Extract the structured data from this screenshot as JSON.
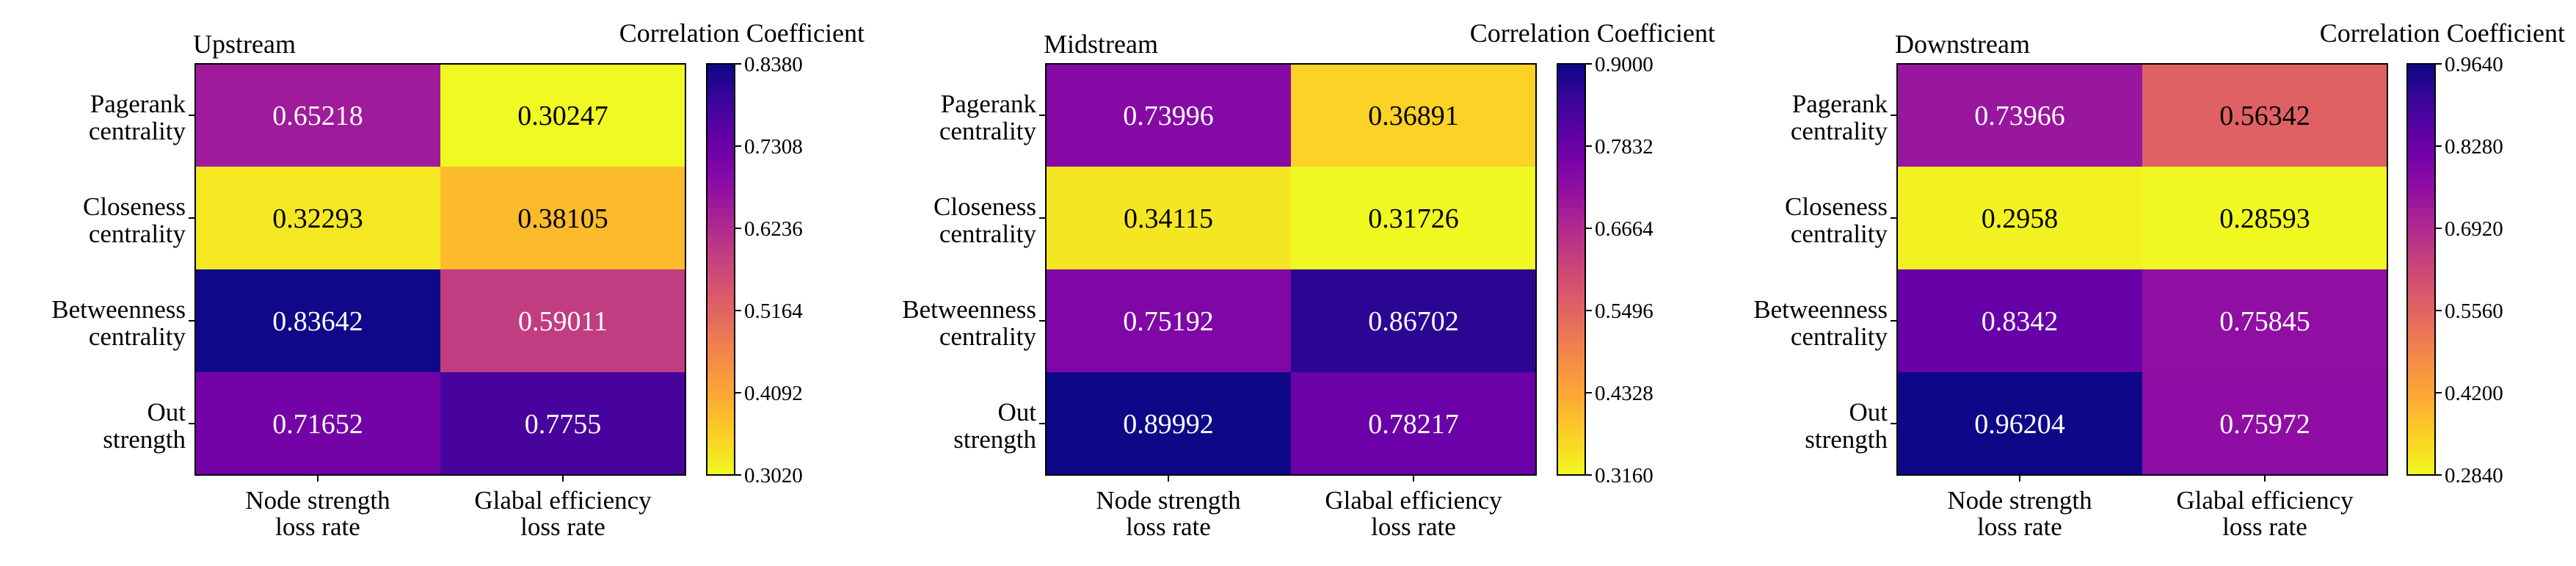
{
  "chart_data": [
    {
      "type": "heatmap",
      "title": "Upstream",
      "colorbar_label": "Correlation Coefficient",
      "row_labels": [
        [
          "Pagerank",
          "centrality"
        ],
        [
          "Closeness",
          "centrality"
        ],
        [
          "Betweenness",
          "centrality"
        ],
        [
          "Out",
          "strength"
        ]
      ],
      "col_labels": [
        [
          "Node strength",
          "loss rate"
        ],
        [
          "Glabal efficiency",
          "loss rate"
        ]
      ],
      "values": [
        [
          0.65218,
          0.30247
        ],
        [
          0.32293,
          0.38105
        ],
        [
          0.83642,
          0.59011
        ],
        [
          0.71652,
          0.7755
        ]
      ],
      "value_labels": [
        [
          "0.65218",
          "0.30247"
        ],
        [
          "0.32293",
          "0.38105"
        ],
        [
          "0.83642",
          "0.59011"
        ],
        [
          "0.71652",
          "0.7755"
        ]
      ],
      "vmin": 0.302,
      "vmax": 0.838,
      "colorbar_ticks": [
        "0.8380",
        "0.7308",
        "0.6236",
        "0.5164",
        "0.4092",
        "0.3020"
      ],
      "colorbar_tick_values": [
        0.838,
        0.7308,
        0.6236,
        0.5164,
        0.4092,
        0.302
      ]
    },
    {
      "type": "heatmap",
      "title": "Midstream",
      "colorbar_label": "Correlation Coefficient",
      "row_labels": [
        [
          "Pagerank",
          "centrality"
        ],
        [
          "Closeness",
          "centrality"
        ],
        [
          "Betweenness",
          "centrality"
        ],
        [
          "Out",
          "strength"
        ]
      ],
      "col_labels": [
        [
          "Node strength",
          "loss rate"
        ],
        [
          "Glabal efficiency",
          "loss rate"
        ]
      ],
      "values": [
        [
          0.73996,
          0.36891
        ],
        [
          0.34115,
          0.31726
        ],
        [
          0.75192,
          0.86702
        ],
        [
          0.89992,
          0.78217
        ]
      ],
      "value_labels": [
        [
          "0.73996",
          "0.36891"
        ],
        [
          "0.34115",
          "0.31726"
        ],
        [
          "0.75192",
          "0.86702"
        ],
        [
          "0.89992",
          "0.78217"
        ]
      ],
      "vmin": 0.316,
      "vmax": 0.9,
      "colorbar_ticks": [
        "0.9000",
        "0.7832",
        "0.6664",
        "0.5496",
        "0.4328",
        "0.3160"
      ],
      "colorbar_tick_values": [
        0.9,
        0.7832,
        0.6664,
        0.5496,
        0.4328,
        0.316
      ]
    },
    {
      "type": "heatmap",
      "title": "Downstream",
      "colorbar_label": "Correlation Coefficient",
      "row_labels": [
        [
          "Pagerank",
          "centrality"
        ],
        [
          "Closeness",
          "centrality"
        ],
        [
          "Betweenness",
          "centrality"
        ],
        [
          "Out",
          "strength"
        ]
      ],
      "col_labels": [
        [
          "Node strength",
          "loss rate"
        ],
        [
          "Glabal efficiency",
          "loss rate"
        ]
      ],
      "values": [
        [
          0.73966,
          0.56342
        ],
        [
          0.2958,
          0.28593
        ],
        [
          0.8342,
          0.75845
        ],
        [
          0.96204,
          0.75972
        ]
      ],
      "value_labels": [
        [
          "0.73966",
          "0.56342"
        ],
        [
          "0.2958",
          "0.28593"
        ],
        [
          "0.8342",
          "0.75845"
        ],
        [
          "0.96204",
          "0.75972"
        ]
      ],
      "vmin": 0.284,
      "vmax": 0.964,
      "colorbar_ticks": [
        "0.9640",
        "0.8280",
        "0.6920",
        "0.5560",
        "0.4200",
        "0.2840"
      ],
      "colorbar_tick_values": [
        0.964,
        0.828,
        0.692,
        0.556,
        0.42,
        0.284
      ]
    }
  ]
}
